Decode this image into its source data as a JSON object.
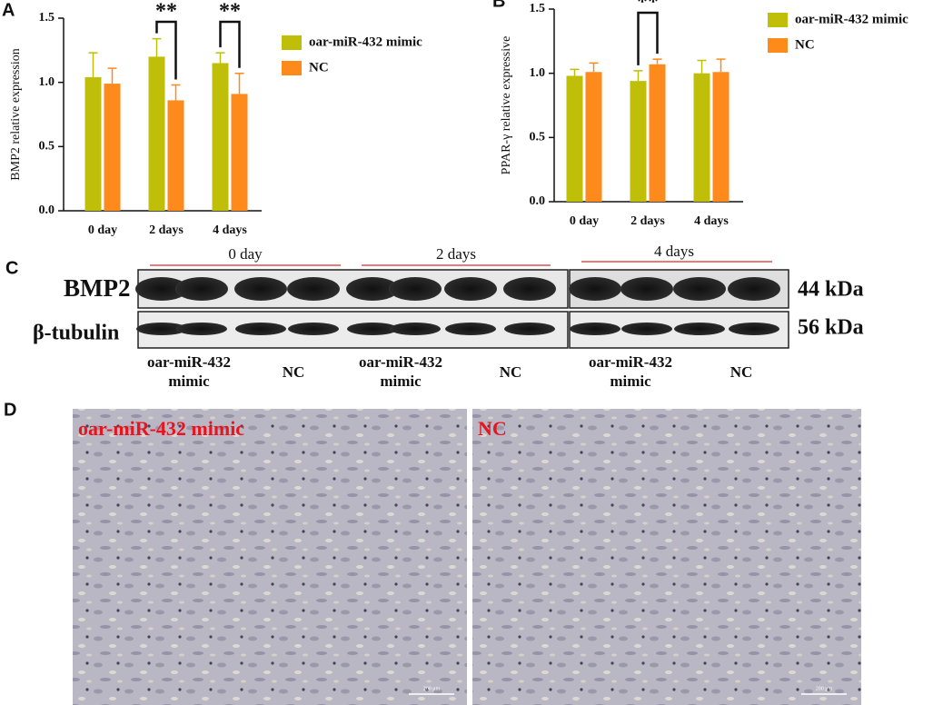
{
  "chart_data": [
    {
      "type": "bar",
      "panel": "A",
      "ylabel": "BMP2 relative expression",
      "categories": [
        "0 day",
        "2 days",
        "4 days"
      ],
      "series": [
        {
          "name": "oar-miR-432 mimic",
          "color": "#bfbf0a",
          "values": [
            1.04,
            1.2,
            1.15
          ],
          "errors": [
            0.19,
            0.14,
            0.08
          ]
        },
        {
          "name": "NC",
          "color": "#ff8a1c",
          "values": [
            0.99,
            0.86,
            0.91
          ],
          "errors": [
            0.12,
            0.12,
            0.16
          ]
        }
      ],
      "significance": [
        null,
        "**",
        "**"
      ],
      "ylim": [
        0,
        1.5
      ],
      "yticks": [
        {
          "value": 0,
          "label": "0.0"
        },
        {
          "value": 0.5,
          "label": "0.5"
        },
        {
          "value": 1,
          "label": "1.0"
        },
        {
          "value": 1.5,
          "label": "1.5"
        }
      ]
    },
    {
      "type": "bar",
      "panel": "B",
      "ylabel": "PPAR-γ relative expressive",
      "categories": [
        "0 day",
        "2 days",
        "4 days"
      ],
      "series": [
        {
          "name": "oar-miR-432 mimic",
          "color": "#bfbf0a",
          "values": [
            0.98,
            0.94,
            1.0
          ],
          "errors": [
            0.05,
            0.08,
            0.1
          ]
        },
        {
          "name": "NC",
          "color": "#ff8a1c",
          "values": [
            1.01,
            1.07,
            1.01
          ],
          "errors": [
            0.07,
            0.04,
            0.1
          ]
        }
      ],
      "significance": [
        null,
        "**",
        null
      ],
      "ylim": [
        0,
        1.5
      ],
      "yticks": [
        {
          "value": 0,
          "label": "0.0"
        },
        {
          "value": 0.5,
          "label": "0.5"
        },
        {
          "value": 1,
          "label": "1.0"
        },
        {
          "value": 1.5,
          "label": "1.5"
        }
      ]
    }
  ],
  "blot": {
    "panel": "C",
    "time_labels": [
      "0 day",
      "2 days",
      "4 days"
    ],
    "rows": [
      {
        "label": "BMP2",
        "size": "44 kDa"
      },
      {
        "label": "β-tubulin",
        "size": "56 kDa"
      }
    ],
    "lane_labels": [
      "oar-miR-432 mimic",
      "NC",
      "oar-miR-432 mimic",
      "NC",
      "oar-miR-432 mimic",
      "NC"
    ]
  },
  "micrographs": {
    "panel": "D",
    "labels": [
      "oar-miR-432 mimic",
      "NC"
    ],
    "scale_bars": [
      "200 μm",
      "200 μm"
    ]
  }
}
